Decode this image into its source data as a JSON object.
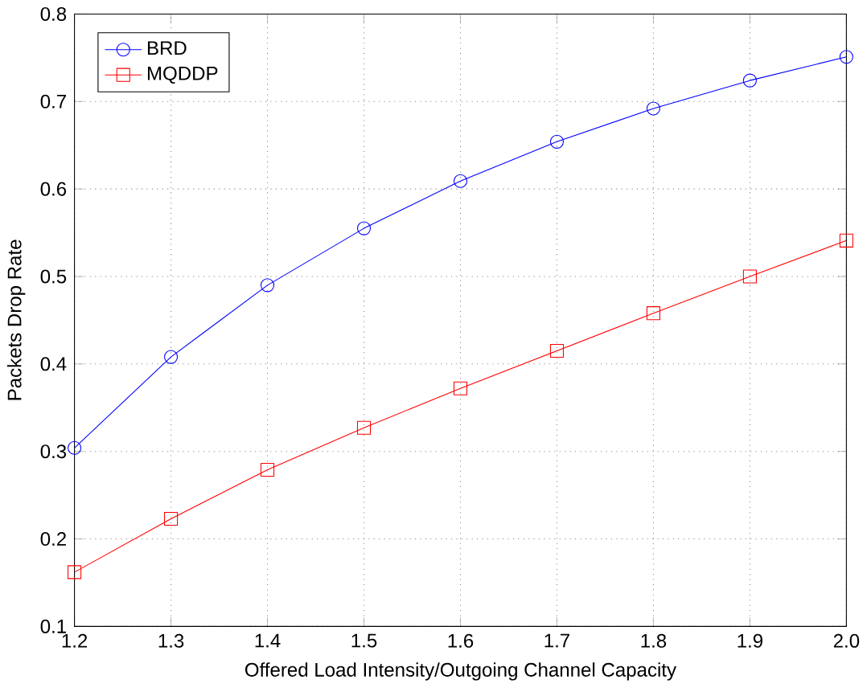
{
  "chart_data": {
    "type": "line",
    "xlabel": "Offered Load Intensity/Outgoing Channel Capacity",
    "ylabel": "Packets Drop Rate",
    "x": [
      1.2,
      1.3,
      1.4,
      1.5,
      1.6,
      1.7,
      1.8,
      1.9,
      2.0
    ],
    "series": [
      {
        "name": "BRD",
        "color": "#0000ff",
        "marker": "circle",
        "values": [
          0.304,
          0.408,
          0.49,
          0.555,
          0.609,
          0.654,
          0.692,
          0.724,
          0.751
        ]
      },
      {
        "name": "MQDDP",
        "color": "#ff0000",
        "marker": "square",
        "values": [
          0.162,
          0.223,
          0.279,
          0.327,
          0.372,
          0.415,
          0.458,
          0.5,
          0.541
        ]
      }
    ],
    "xlim": [
      1.2,
      2.0
    ],
    "ylim": [
      0.1,
      0.8
    ],
    "xticks": [
      1.2,
      1.3,
      1.4,
      1.5,
      1.6,
      1.7,
      1.8,
      1.9,
      {
        "value": 2.0,
        "label": "2.0"
      }
    ],
    "yticks": [
      0.1,
      0.2,
      0.3,
      0.4,
      0.5,
      0.6,
      0.7,
      0.8
    ],
    "grid": true,
    "legend": "top left",
    "line_style": "solid"
  }
}
